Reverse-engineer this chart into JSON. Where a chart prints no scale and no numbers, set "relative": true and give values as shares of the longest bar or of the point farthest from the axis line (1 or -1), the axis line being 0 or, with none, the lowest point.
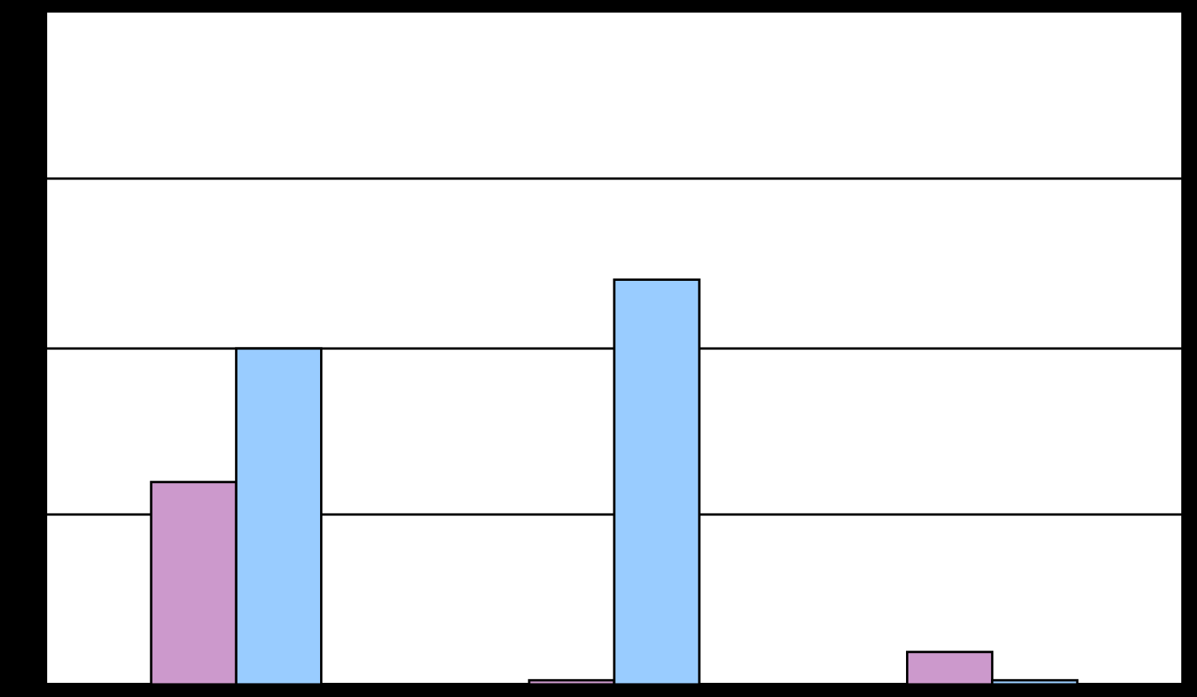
{
  "chart_data": {
    "type": "bar",
    "relative": true,
    "ref_lines": [
      {
        "axis": "y",
        "value": 0.42,
        "color": "#000000"
      },
      {
        "axis": "y",
        "value": 0.83,
        "color": "#000000"
      },
      {
        "axis": "y",
        "value": 1.25,
        "color": "#000000"
      }
    ],
    "legend": false,
    "categories": [
      null,
      null,
      null
    ],
    "series": [
      {
        "color": "#cc99cc",
        "values": [
          0.5,
          0.01,
          0.08
        ]
      },
      {
        "color": "#99ccff",
        "values": [
          0.83,
          1,
          0.01
        ]
      }
    ]
  }
}
